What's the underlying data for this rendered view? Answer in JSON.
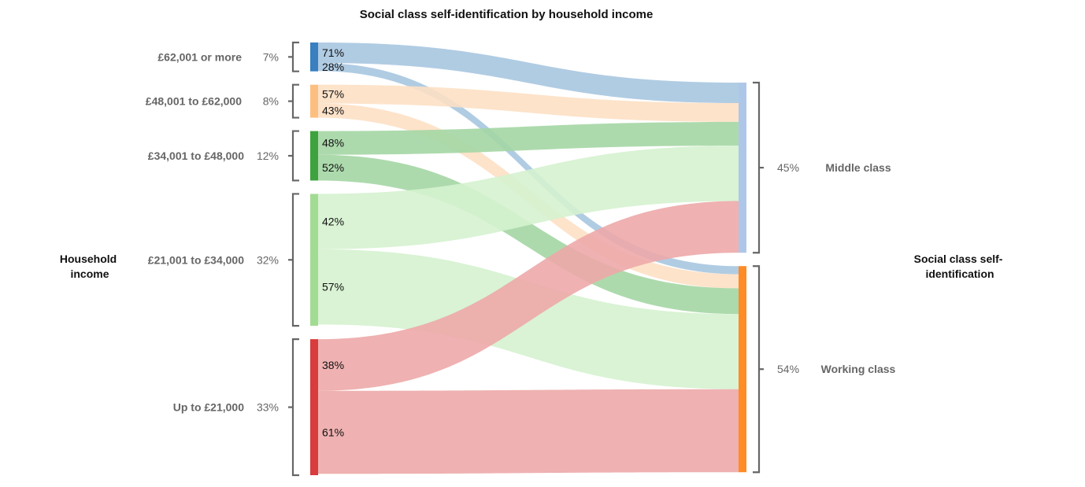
{
  "chart_data": {
    "type": "sankey",
    "title": "Social class self-identification by household income",
    "left_axis_title": [
      "Household",
      "income"
    ],
    "right_axis_title": [
      "Social class self-",
      "identification"
    ],
    "sources": [
      {
        "name": "£62,001 or more",
        "share": "7%",
        "value": 7,
        "color": "#3a7fbf",
        "flow_color": "#a7c6e0",
        "flows": [
          {
            "target": "Middle class",
            "pct": 71,
            "label": "71%"
          },
          {
            "target": "Working class",
            "pct": 28,
            "label": "28%"
          }
        ]
      },
      {
        "name": "£48,001 to £62,000",
        "share": "8%",
        "value": 8,
        "color": "#fdbf80",
        "flow_color": "#fde0c4",
        "flows": [
          {
            "target": "Middle class",
            "pct": 57,
            "label": "57%"
          },
          {
            "target": "Working class",
            "pct": 43,
            "label": "43%"
          }
        ]
      },
      {
        "name": "£34,001 to £48,000",
        "share": "12%",
        "value": 12,
        "color": "#3ea33e",
        "flow_color": "#a4d6a4",
        "flows": [
          {
            "target": "Middle class",
            "pct": 48,
            "label": "48%"
          },
          {
            "target": "Working class",
            "pct": 52,
            "label": "52%"
          }
        ]
      },
      {
        "name": "£21,001 to £34,000",
        "share": "32%",
        "value": 32,
        "color": "#a2dc93",
        "flow_color": "#d5f2cf",
        "flows": [
          {
            "target": "Middle class",
            "pct": 42,
            "label": "42%"
          },
          {
            "target": "Working class",
            "pct": 57,
            "label": "57%"
          }
        ]
      },
      {
        "name": "Up to £21,000",
        "share": "33%",
        "value": 33,
        "color": "#d83c3c",
        "flow_color": "#eda8a9",
        "flows": [
          {
            "target": "Middle class",
            "pct": 38,
            "label": "38%"
          },
          {
            "target": "Working class",
            "pct": 61,
            "label": "61%"
          }
        ]
      }
    ],
    "targets": [
      {
        "name": "Middle class",
        "share": "45%",
        "value": 45,
        "color": "#aec7e8"
      },
      {
        "name": "Working class",
        "share": "54%",
        "value": 54,
        "color": "#ff8c26"
      }
    ]
  }
}
